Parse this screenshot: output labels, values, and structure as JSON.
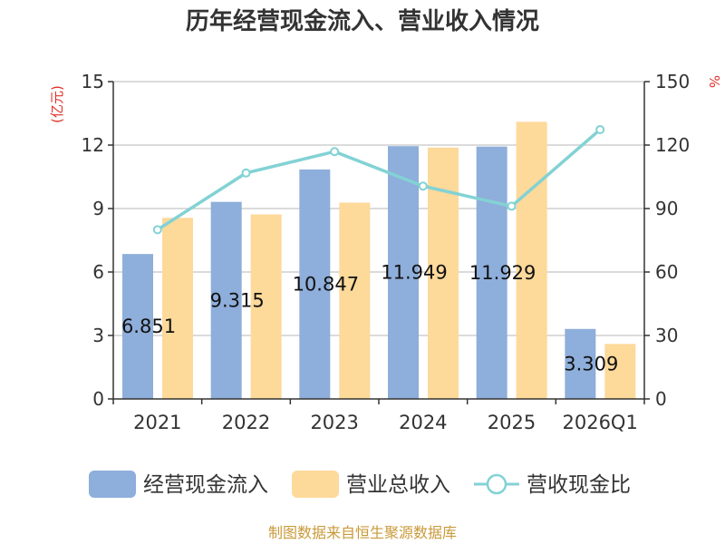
{
  "chart_data": {
    "type": "bar",
    "title": "历年经营现金流入、营业收入情况",
    "categories": [
      "2021",
      "2022",
      "2023",
      "2024",
      "2025",
      "2026Q1"
    ],
    "left_axis": {
      "unit": "(亿元)",
      "min": 0,
      "max": 15,
      "ticks": [
        0,
        3,
        6,
        9,
        12,
        15
      ]
    },
    "right_axis": {
      "unit": "%",
      "min": 0,
      "max": 150,
      "ticks": [
        0,
        30,
        60,
        90,
        120,
        150
      ]
    },
    "series": [
      {
        "name": "经营现金流入",
        "type": "bar",
        "axis": "left",
        "color": "#8eaedb",
        "values": [
          6.851,
          9.315,
          10.847,
          11.949,
          11.929,
          3.309
        ],
        "labels": [
          "6.851",
          "9.315",
          "10.847",
          "11.949",
          "11.929",
          "3.309"
        ]
      },
      {
        "name": "营业总收入",
        "type": "bar",
        "axis": "left",
        "color": "#fdd99a",
        "values": [
          8.56,
          8.72,
          9.28,
          11.88,
          13.1,
          2.6
        ]
      },
      {
        "name": "营收现金比",
        "type": "line",
        "axis": "right",
        "color": "#83d2d4",
        "values": [
          80.0,
          106.8,
          116.9,
          100.6,
          91.1,
          127.3
        ]
      }
    ],
    "grid": true,
    "legend_position": "bottom",
    "source": "制图数据来自恒生聚源数据库"
  }
}
